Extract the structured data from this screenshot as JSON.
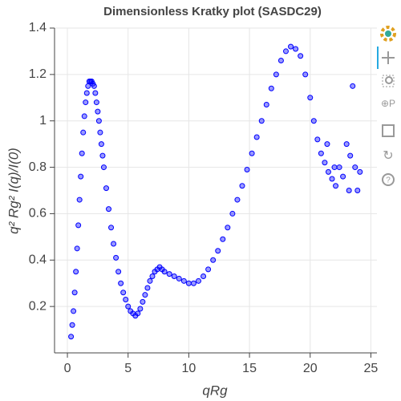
{
  "chart_data": {
    "type": "scatter",
    "title": "Dimensionless Kratky plot (SASDC29)",
    "x_label": "qRg",
    "y_label": "q² Rg² I(q)/I(0)",
    "xlim": [
      -1.06,
      25.5
    ],
    "ylim": [
      0,
      1.4
    ],
    "xticks": [
      0,
      5,
      10,
      15,
      20,
      25
    ],
    "yticks": [
      0.2,
      0.4,
      0.6,
      0.8,
      1,
      1.2,
      1.4
    ],
    "grid": true,
    "color": "#0000ff",
    "x": [
      0.3,
      0.4,
      0.5,
      0.6,
      0.7,
      0.8,
      0.9,
      1.0,
      1.1,
      1.2,
      1.3,
      1.4,
      1.5,
      1.6,
      1.7,
      1.8,
      1.9,
      2.0,
      2.1,
      2.2,
      2.3,
      2.4,
      2.5,
      2.6,
      2.7,
      2.8,
      2.9,
      3.0,
      3.2,
      3.4,
      3.6,
      3.8,
      4.0,
      4.2,
      4.4,
      4.6,
      4.8,
      5.0,
      5.2,
      5.4,
      5.6,
      5.8,
      6.0,
      6.2,
      6.4,
      6.6,
      6.8,
      7.0,
      7.2,
      7.4,
      7.6,
      7.8,
      8.0,
      8.4,
      8.8,
      9.2,
      9.6,
      10.0,
      10.4,
      10.8,
      11.2,
      11.6,
      12.0,
      12.4,
      12.8,
      13.2,
      13.6,
      14.0,
      14.4,
      14.8,
      15.2,
      15.6,
      16.0,
      16.4,
      16.8,
      17.2,
      17.6,
      18.0,
      18.4,
      18.8,
      19.2,
      19.6,
      20.0,
      20.3,
      20.6,
      20.9,
      21.2,
      21.5,
      21.8,
      22.1,
      22.4,
      22.7,
      23.0,
      23.3,
      23.5,
      23.7,
      23.9,
      24.1,
      21.4,
      22.0,
      23.2
    ],
    "values": [
      0.07,
      0.12,
      0.18,
      0.26,
      0.35,
      0.45,
      0.55,
      0.66,
      0.76,
      0.86,
      0.95,
      1.02,
      1.08,
      1.12,
      1.15,
      1.17,
      1.17,
      1.17,
      1.16,
      1.15,
      1.12,
      1.08,
      1.04,
      1.0,
      0.95,
      0.9,
      0.85,
      0.8,
      0.71,
      0.62,
      0.54,
      0.47,
      0.41,
      0.35,
      0.3,
      0.26,
      0.23,
      0.2,
      0.18,
      0.17,
      0.16,
      0.17,
      0.19,
      0.22,
      0.25,
      0.28,
      0.31,
      0.33,
      0.35,
      0.36,
      0.37,
      0.36,
      0.35,
      0.34,
      0.33,
      0.32,
      0.31,
      0.3,
      0.3,
      0.31,
      0.33,
      0.36,
      0.4,
      0.44,
      0.49,
      0.54,
      0.6,
      0.66,
      0.72,
      0.79,
      0.86,
      0.93,
      1.0,
      1.07,
      1.14,
      1.2,
      1.26,
      1.3,
      1.32,
      1.31,
      1.28,
      1.2,
      1.1,
      1.0,
      0.92,
      0.86,
      0.82,
      0.78,
      0.75,
      0.72,
      0.8,
      0.76,
      0.9,
      0.85,
      1.15,
      0.8,
      0.7,
      0.78,
      0.9,
      0.8,
      0.7
    ]
  }
}
